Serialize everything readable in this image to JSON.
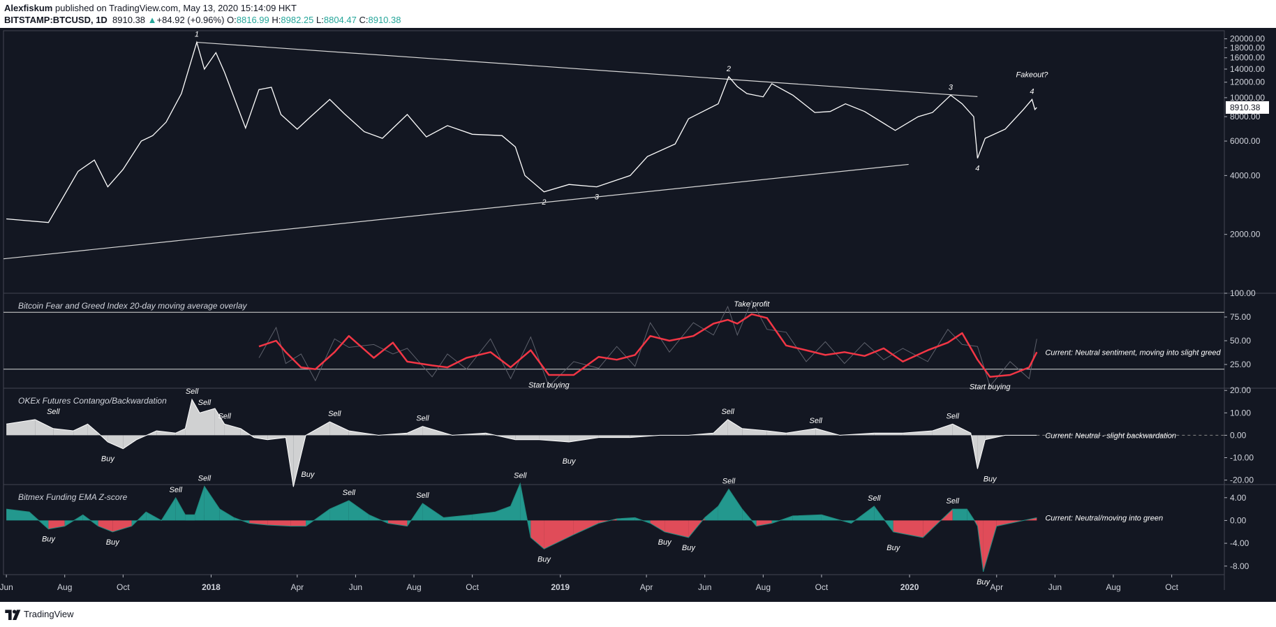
{
  "header": {
    "author": "Alexfiskum",
    "published": "published on TradingView.com, May 13, 2020 15:14:09 HKT",
    "symbol": "BITSTAMP:BTCUSD, 1D",
    "last": "8910.38",
    "change_arrow": "▲",
    "change": "+84.92 (+0.96%)",
    "o_label": "O:",
    "o": "8816.99",
    "h_label": "H:",
    "h": "8982.25",
    "l_label": "L:",
    "l": "8804.47",
    "c_label": "C:",
    "c": "8910.38"
  },
  "footer": {
    "brand": "TradingView",
    "logo": "tradingview-logo-icon"
  },
  "colors": {
    "background": "#131722",
    "price": "#ffffff",
    "fg_ma": "#f23645",
    "fg_raw": "#5d606b",
    "contango": "#e6e6e6",
    "funding_pos": "#26a69a",
    "funding_neg": "#f7525f",
    "current_price_tag": "#ffffff"
  },
  "chart_data": [
    {
      "type": "line",
      "panel": "price",
      "xaxis_ticks": [
        "Jun",
        "Aug",
        "Oct",
        "2018",
        "Apr",
        "Jun",
        "Aug",
        "Oct",
        "2019",
        "Apr",
        "Jun",
        "Aug",
        "Oct",
        "2020",
        "Apr",
        "Jun",
        "Aug",
        "Oct"
      ],
      "bold_ticks": [
        "2018",
        "2019",
        "2020"
      ],
      "yticks": [
        "2000.00",
        "4000.00",
        "6000.00",
        "8000.00",
        "10000.00",
        "12000.00",
        "14000.00",
        "16000.00",
        "18000.00",
        "20000.00"
      ],
      "ylim": [
        1000,
        22000
      ],
      "current_price": 8910.38,
      "current_price_label": "8910.38",
      "series": [
        {
          "x": [
            "2017-06-01",
            "2017-07-15",
            "2017-08-15",
            "2017-09-01",
            "2017-09-15",
            "2017-10-01",
            "2017-10-20",
            "2017-11-01",
            "2017-11-15",
            "2017-12-01",
            "2017-12-17",
            "2017-12-25",
            "2018-01-06",
            "2018-01-15",
            "2018-02-06",
            "2018-02-20",
            "2018-03-05",
            "2018-03-15",
            "2018-04-01",
            "2018-04-15",
            "2018-05-05",
            "2018-05-20",
            "2018-06-10",
            "2018-06-29",
            "2018-07-25",
            "2018-08-14",
            "2018-09-05",
            "2018-10-01",
            "2018-11-01",
            "2018-11-15",
            "2018-11-25",
            "2018-12-15",
            "2019-01-10",
            "2019-02-08",
            "2019-03-15",
            "2019-04-02",
            "2019-05-01",
            "2019-05-15",
            "2019-06-01",
            "2019-06-15",
            "2019-06-26",
            "2019-07-05",
            "2019-07-15",
            "2019-08-01",
            "2019-08-10",
            "2019-09-01",
            "2019-09-24",
            "2019-10-10",
            "2019-10-26",
            "2019-11-15",
            "2019-12-17",
            "2020-01-10",
            "2020-01-25",
            "2020-02-13",
            "2020-02-25",
            "2020-03-08",
            "2020-03-12",
            "2020-03-20",
            "2020-04-10",
            "2020-04-29",
            "2020-05-08",
            "2020-05-11",
            "2020-05-13"
          ],
          "y": [
            2400,
            2300,
            4200,
            4800,
            3500,
            4300,
            6000,
            6400,
            7500,
            10500,
            19200,
            14000,
            17000,
            13500,
            7000,
            11000,
            11300,
            8200,
            6900,
            8000,
            9800,
            8300,
            6700,
            6200,
            8200,
            6300,
            7200,
            6500,
            6400,
            5600,
            4000,
            3300,
            3600,
            3500,
            4000,
            5000,
            5800,
            7800,
            8600,
            9300,
            12800,
            11400,
            10500,
            10100,
            11800,
            10300,
            8400,
            8500,
            9300,
            8500,
            6800,
            8000,
            8400,
            10300,
            9300,
            8000,
            4900,
            6200,
            6900,
            8700,
            9800,
            8700,
            8910
          ]
        }
      ],
      "trendlines": [
        {
          "x": [
            "2017-05-29",
            "2019-12-31"
          ],
          "y": [
            1500,
            4560
          ]
        },
        {
          "x": [
            "2017-12-17",
            "2020-03-12"
          ],
          "y": [
            19200,
            10130
          ]
        }
      ],
      "annotations": [
        {
          "text": "1",
          "x": "2017-12-17",
          "y": 19200,
          "pos": "above"
        },
        {
          "text": "2",
          "x": "2019-06-26",
          "y": 12800,
          "pos": "above"
        },
        {
          "text": "3",
          "x": "2020-02-13",
          "y": 10300,
          "pos": "above"
        },
        {
          "text": "4",
          "x": "2020-05-08",
          "y": 9800,
          "pos": "above"
        },
        {
          "text": "Fakeout?",
          "x": "2020-05-08",
          "y": 11900,
          "pos": "above"
        },
        {
          "text": "2",
          "x": "2018-12-15",
          "y": 3300,
          "pos": "below"
        },
        {
          "text": "3",
          "x": "2019-02-08",
          "y": 3500,
          "pos": "below"
        },
        {
          "text": "4",
          "x": "2020-03-12",
          "y": 4900,
          "pos": "below"
        }
      ]
    },
    {
      "type": "line",
      "panel": "fear-greed",
      "title": "Bitcoin Fear and Greed Index 20-day moving average overlay",
      "yticks": [
        "25.00",
        "50.00",
        "75.00",
        "100.00"
      ],
      "ylim": [
        0,
        100
      ],
      "bands": [
        20,
        80
      ],
      "series": [
        {
          "x": [
            "2018-02-20",
            "2018-03-10",
            "2018-03-20",
            "2018-04-05",
            "2018-04-20",
            "2018-05-10",
            "2018-05-25",
            "2018-06-20",
            "2018-07-10",
            "2018-07-25",
            "2018-08-20",
            "2018-09-05",
            "2018-09-25",
            "2018-10-20",
            "2018-11-10",
            "2018-12-01",
            "2018-12-20",
            "2019-01-15",
            "2019-02-10",
            "2019-03-01",
            "2019-03-20",
            "2019-04-05",
            "2019-04-25",
            "2019-05-20",
            "2019-06-10",
            "2019-06-25",
            "2019-07-05",
            "2019-07-20",
            "2019-08-05",
            "2019-08-25",
            "2019-09-15",
            "2019-10-05",
            "2019-10-25",
            "2019-11-15",
            "2019-12-05",
            "2019-12-25",
            "2020-01-20",
            "2020-02-10",
            "2020-02-25",
            "2020-03-12",
            "2020-03-25",
            "2020-04-15",
            "2020-05-05",
            "2020-05-13"
          ],
          "y": [
            44,
            50,
            38,
            22,
            20,
            38,
            55,
            32,
            48,
            28,
            24,
            22,
            32,
            38,
            22,
            40,
            14,
            14,
            33,
            30,
            35,
            55,
            50,
            55,
            68,
            72,
            68,
            78,
            74,
            45,
            40,
            35,
            38,
            34,
            42,
            28,
            40,
            48,
            58,
            30,
            12,
            14,
            22,
            38
          ]
        }
      ],
      "annotations": [
        {
          "text": "Take profit",
          "x": "2019-07-20",
          "y": 80,
          "pos": "above"
        },
        {
          "text": "Start buying",
          "x": "2018-12-20",
          "y": 14,
          "pos": "below"
        },
        {
          "text": "Start buying",
          "x": "2020-03-25",
          "y": 12,
          "pos": "below"
        },
        {
          "text": "Current: Neutral sentiment, moving into slight greed",
          "x": "2020-05-13",
          "y": 38,
          "pos": "right"
        }
      ]
    },
    {
      "type": "area",
      "panel": "contango",
      "title": "OKEx Futures Contango/Backwardation",
      "yticks": [
        "-20.00",
        "-10.00",
        "0.00",
        "10.00",
        "20.00"
      ],
      "ylim": [
        -22,
        21
      ],
      "series": [
        {
          "x": [
            "2017-06-01",
            "2017-07-01",
            "2017-07-20",
            "2017-08-10",
            "2017-08-25",
            "2017-09-05",
            "2017-09-15",
            "2017-10-01",
            "2017-10-15",
            "2017-11-05",
            "2017-11-25",
            "2017-12-05",
            "2017-12-12",
            "2017-12-20",
            "2018-01-05",
            "2018-01-15",
            "2018-02-01",
            "2018-02-15",
            "2018-03-01",
            "2018-03-20",
            "2018-03-28",
            "2018-04-10",
            "2018-05-05",
            "2018-05-25",
            "2018-06-25",
            "2018-07-25",
            "2018-08-10",
            "2018-09-10",
            "2018-10-15",
            "2018-11-15",
            "2018-12-10",
            "2019-01-10",
            "2019-02-10",
            "2019-03-15",
            "2019-04-15",
            "2019-05-15",
            "2019-06-10",
            "2019-06-25",
            "2019-07-10",
            "2019-08-05",
            "2019-08-25",
            "2019-09-25",
            "2019-10-20",
            "2019-11-25",
            "2019-12-25",
            "2020-01-25",
            "2020-02-15",
            "2020-03-05",
            "2020-03-12",
            "2020-03-20",
            "2020-04-10",
            "2020-05-13"
          ],
          "y": [
            5,
            7,
            3,
            2,
            5,
            1,
            -3,
            -6,
            -2,
            2,
            1,
            3,
            16,
            10,
            12,
            5,
            3,
            -1,
            -2,
            -1,
            -23,
            0,
            6,
            2,
            0,
            1,
            4,
            0,
            1,
            -2,
            -2,
            -3,
            -1,
            -1,
            0,
            0,
            1,
            7,
            3,
            2,
            1,
            3,
            0,
            1,
            1,
            2,
            5,
            1,
            -15,
            -2,
            0,
            0
          ]
        }
      ],
      "annotations": [
        {
          "text": "Sell",
          "x": "2017-07-20",
          "y": 7,
          "pos": "above"
        },
        {
          "text": "Buy",
          "x": "2017-09-15",
          "y": -6,
          "pos": "below"
        },
        {
          "text": "Sell",
          "x": "2017-12-12",
          "y": 16,
          "pos": "above"
        },
        {
          "text": "Sell",
          "x": "2017-12-25",
          "y": 11,
          "pos": "above"
        },
        {
          "text": "Sell",
          "x": "2018-01-15",
          "y": 5,
          "pos": "above"
        },
        {
          "text": "Buy",
          "x": "2018-04-12",
          "y": -13,
          "pos": "below"
        },
        {
          "text": "Sell",
          "x": "2018-05-10",
          "y": 6,
          "pos": "above"
        },
        {
          "text": "Sell",
          "x": "2018-08-10",
          "y": 4,
          "pos": "above"
        },
        {
          "text": "Buy",
          "x": "2019-01-10",
          "y": -7,
          "pos": "below"
        },
        {
          "text": "Sell",
          "x": "2019-06-25",
          "y": 7,
          "pos": "above"
        },
        {
          "text": "Sell",
          "x": "2019-09-25",
          "y": 3,
          "pos": "above"
        },
        {
          "text": "Sell",
          "x": "2020-02-15",
          "y": 5,
          "pos": "above"
        },
        {
          "text": "Buy",
          "x": "2020-03-25",
          "y": -15,
          "pos": "below"
        },
        {
          "text": "Current: Neutral - slight backwardation",
          "x": "2020-05-13",
          "y": 0,
          "pos": "right"
        }
      ]
    },
    {
      "type": "area",
      "panel": "funding",
      "title": "Bitmex Funding EMA Z-score",
      "yticks": [
        "-8.00",
        "-4.00",
        "0.00",
        "4.00"
      ],
      "ylim": [
        -9.5,
        6.3
      ],
      "series": [
        {
          "x": [
            "2017-06-01",
            "2017-06-25",
            "2017-07-15",
            "2017-08-01",
            "2017-08-20",
            "2017-09-05",
            "2017-09-20",
            "2017-10-10",
            "2017-10-25",
            "2017-11-10",
            "2017-11-25",
            "2017-12-05",
            "2017-12-15",
            "2017-12-25",
            "2018-01-10",
            "2018-01-25",
            "2018-02-10",
            "2018-03-01",
            "2018-03-25",
            "2018-04-10",
            "2018-05-05",
            "2018-05-25",
            "2018-06-15",
            "2018-07-05",
            "2018-07-25",
            "2018-08-10",
            "2018-09-01",
            "2018-10-01",
            "2018-10-25",
            "2018-11-10",
            "2018-11-20",
            "2018-12-01",
            "2018-12-15",
            "2019-01-15",
            "2019-02-10",
            "2019-03-01",
            "2019-03-20",
            "2019-04-05",
            "2019-04-20",
            "2019-05-15",
            "2019-06-01",
            "2019-06-15",
            "2019-06-26",
            "2019-07-10",
            "2019-07-25",
            "2019-08-10",
            "2019-09-01",
            "2019-10-01",
            "2019-11-01",
            "2019-11-25",
            "2019-12-15",
            "2020-01-15",
            "2020-02-15",
            "2020-03-01",
            "2020-03-08",
            "2020-03-12",
            "2020-03-18",
            "2020-04-01",
            "2020-05-13"
          ],
          "y": [
            2,
            1.5,
            -1.5,
            -1,
            1,
            -1,
            -2,
            -1,
            1.5,
            0,
            4,
            1,
            1,
            6,
            2,
            0.5,
            -0.5,
            -0.8,
            -1,
            -1,
            2,
            3.5,
            1,
            -0.5,
            -1,
            3,
            0.5,
            1,
            1.5,
            2.5,
            6.5,
            -3,
            -5,
            -2.5,
            -0.5,
            0.3,
            0.5,
            -0.5,
            -2,
            -3,
            0.5,
            2.5,
            5.5,
            2,
            -1,
            -0.5,
            0.8,
            1,
            -0.5,
            2.5,
            -2,
            -3,
            2,
            2,
            0.2,
            -1,
            -9,
            -1,
            0.5
          ]
        }
      ],
      "annotations": [
        {
          "text": "Buy",
          "x": "2017-07-15",
          "y": -1.5,
          "pos": "below"
        },
        {
          "text": "Buy",
          "x": "2017-09-20",
          "y": -2,
          "pos": "below"
        },
        {
          "text": "Sell",
          "x": "2017-11-25",
          "y": 4,
          "pos": "above"
        },
        {
          "text": "Sell",
          "x": "2017-12-25",
          "y": 6,
          "pos": "above"
        },
        {
          "text": "Sell",
          "x": "2018-05-25",
          "y": 3.5,
          "pos": "above"
        },
        {
          "text": "Sell",
          "x": "2018-08-10",
          "y": 3,
          "pos": "above"
        },
        {
          "text": "Sell",
          "x": "2018-11-20",
          "y": 6.5,
          "pos": "above"
        },
        {
          "text": "Buy",
          "x": "2018-12-15",
          "y": -5,
          "pos": "below"
        },
        {
          "text": "Buy",
          "x": "2019-04-20",
          "y": -2,
          "pos": "below"
        },
        {
          "text": "Buy",
          "x": "2019-05-15",
          "y": -3,
          "pos": "below"
        },
        {
          "text": "Sell",
          "x": "2019-06-26",
          "y": 5.5,
          "pos": "above"
        },
        {
          "text": "Sell",
          "x": "2019-11-25",
          "y": 2.5,
          "pos": "above"
        },
        {
          "text": "Buy",
          "x": "2019-12-15",
          "y": -3,
          "pos": "below"
        },
        {
          "text": "Sell",
          "x": "2020-02-15",
          "y": 2,
          "pos": "above"
        },
        {
          "text": "Buy",
          "x": "2020-03-18",
          "y": -9,
          "pos": "below"
        },
        {
          "text": "Current: Neutral/moving into green",
          "x": "2020-05-13",
          "y": 0.5,
          "pos": "right"
        }
      ]
    }
  ]
}
